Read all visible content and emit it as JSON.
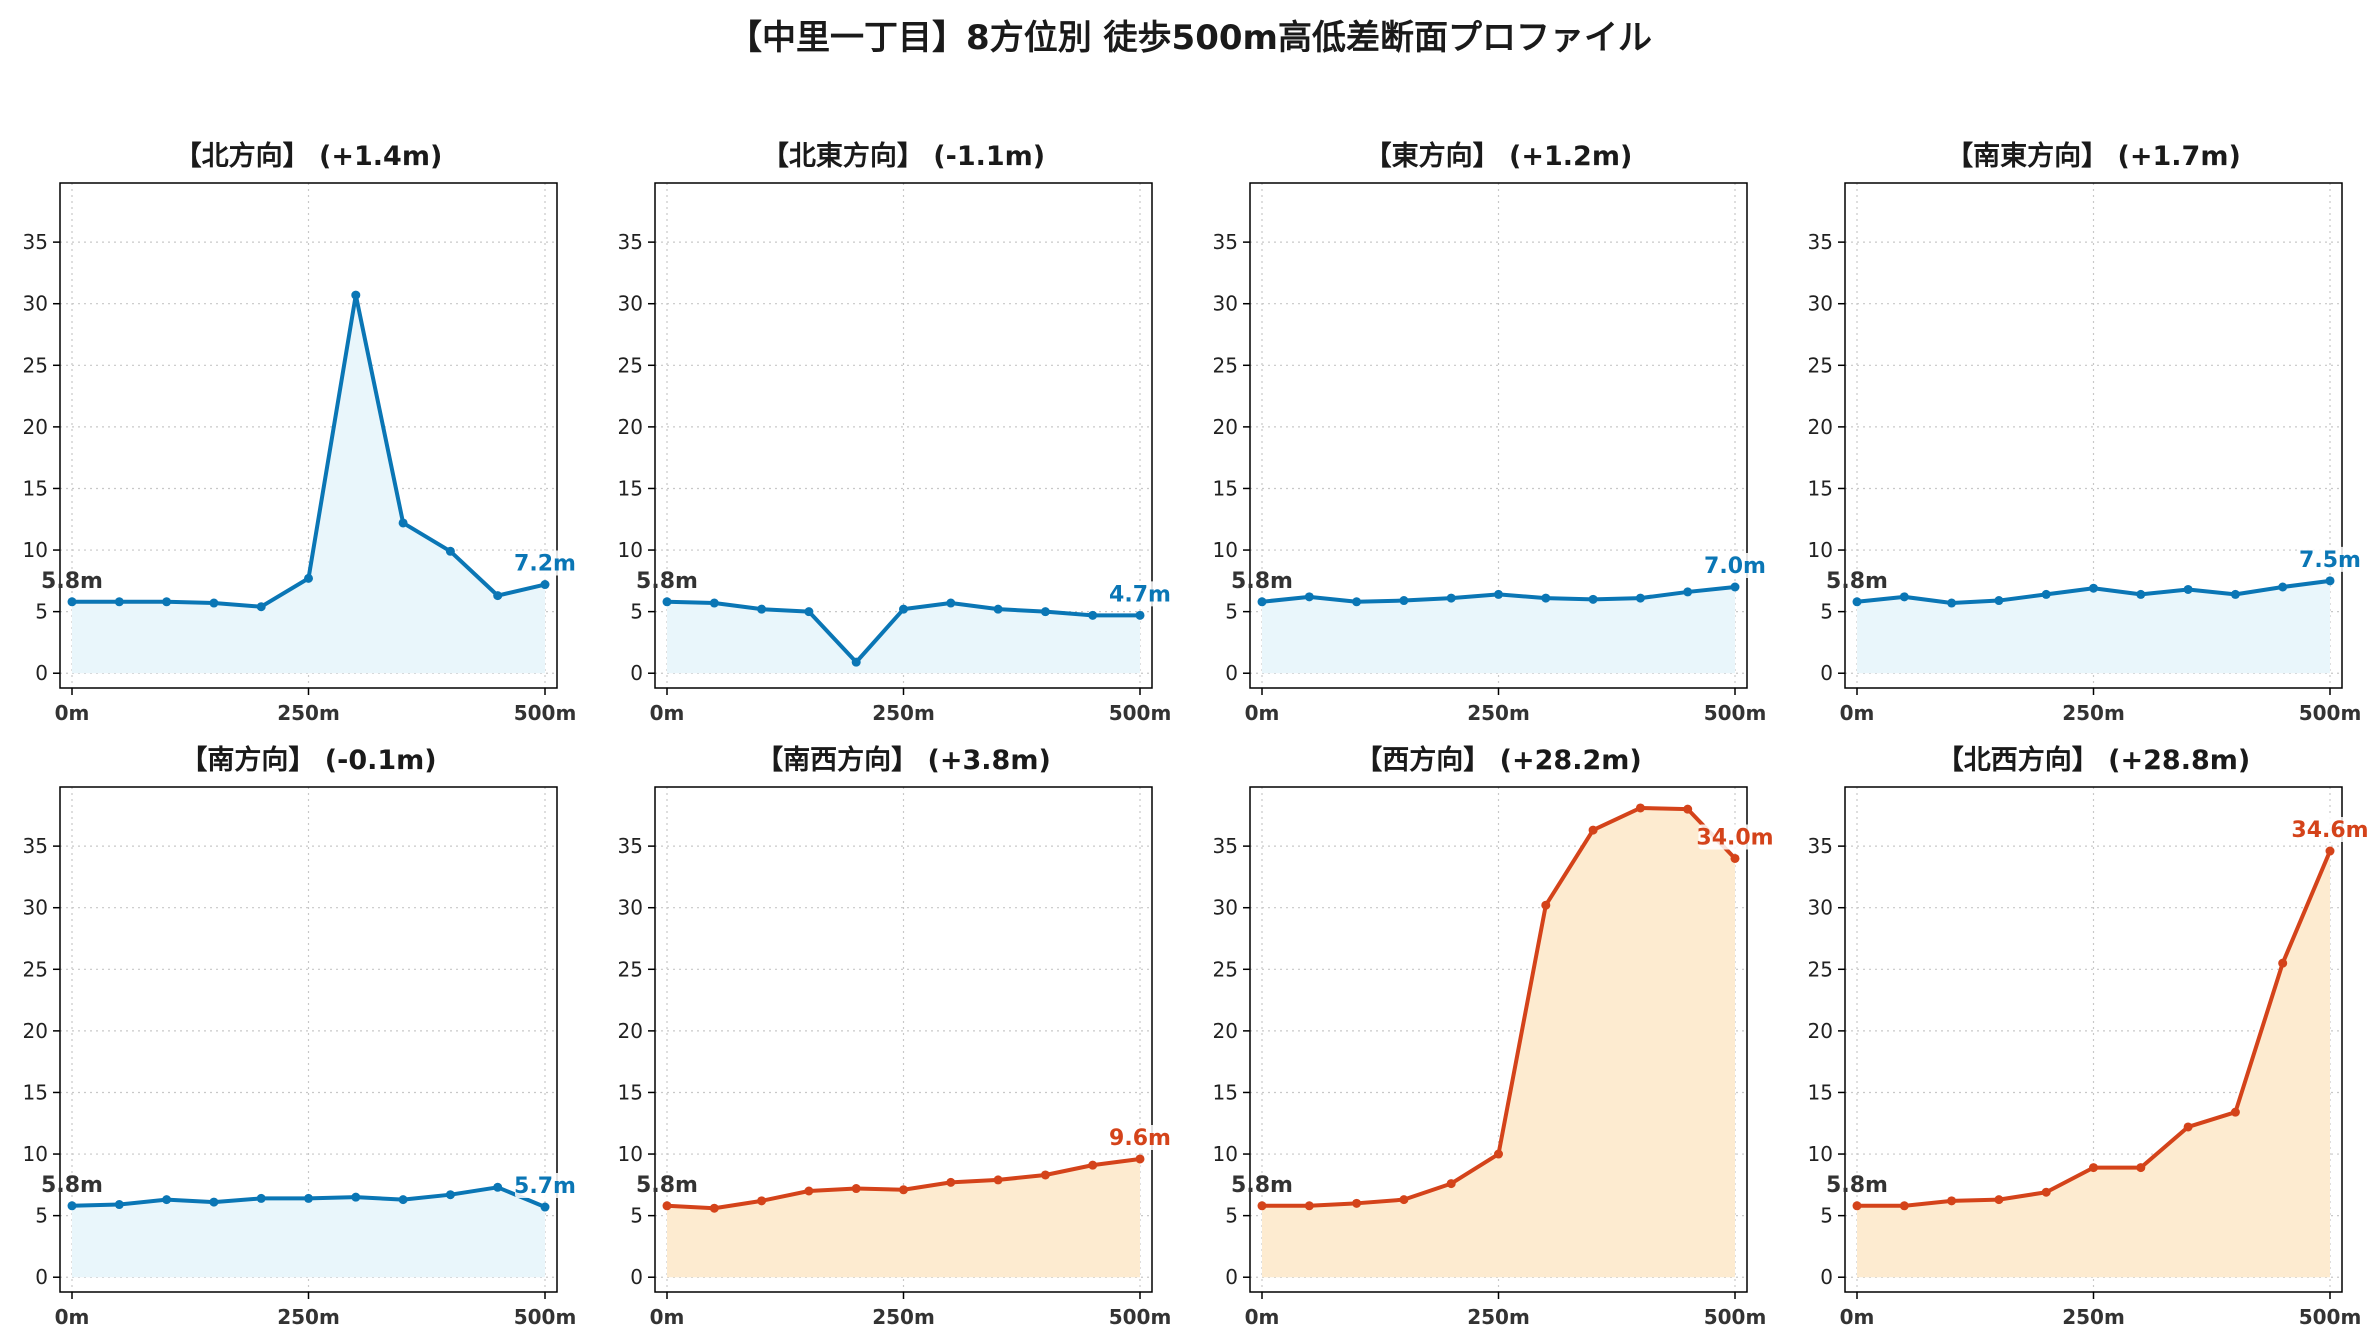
{
  "title": "【中里一丁目】8方位別 徒歩500m高低差断面プロファイル",
  "colors": {
    "up": "#d4431a",
    "down": "#0a76b5",
    "up_fill": "#fdebd0",
    "down_fill": "#e9f6fb",
    "start_label": "#333333"
  },
  "chart_data": [
    {
      "type": "line",
      "title": "【北方向】 (+1.4m)",
      "trend": "down",
      "x": [
        0,
        50,
        100,
        150,
        200,
        250,
        300,
        350,
        400,
        450,
        500
      ],
      "y": [
        5.8,
        5.8,
        5.8,
        5.7,
        5.4,
        7.7,
        30.7,
        12.2,
        9.9,
        6.3,
        7.2
      ],
      "start_label": "5.8m",
      "end_label": "7.2m",
      "xlim": [
        0,
        500
      ],
      "ylim": [
        0,
        40
      ],
      "yticks": [
        "0",
        "5",
        "10",
        "15",
        "20",
        "25",
        "30",
        "35"
      ],
      "xticks": [
        "0m",
        "250m",
        "500m"
      ],
      "grid": true
    },
    {
      "type": "line",
      "title": "【北東方向】 (-1.1m)",
      "trend": "down",
      "x": [
        0,
        50,
        100,
        150,
        200,
        250,
        300,
        350,
        400,
        450,
        500
      ],
      "y": [
        5.8,
        5.7,
        5.2,
        5.0,
        0.9,
        5.2,
        5.7,
        5.2,
        5.0,
        4.7,
        4.7
      ],
      "start_label": "5.8m",
      "end_label": "4.7m",
      "xlim": [
        0,
        500
      ],
      "ylim": [
        0,
        40
      ],
      "yticks": [
        "0",
        "5",
        "10",
        "15",
        "20",
        "25",
        "30",
        "35"
      ],
      "xticks": [
        "0m",
        "250m",
        "500m"
      ],
      "grid": true
    },
    {
      "type": "line",
      "title": "【東方向】 (+1.2m)",
      "trend": "down",
      "x": [
        0,
        50,
        100,
        150,
        200,
        250,
        300,
        350,
        400,
        450,
        500
      ],
      "y": [
        5.8,
        6.2,
        5.8,
        5.9,
        6.1,
        6.4,
        6.1,
        6.0,
        6.1,
        6.6,
        7.0
      ],
      "start_label": "5.8m",
      "end_label": "7.0m",
      "xlim": [
        0,
        500
      ],
      "ylim": [
        0,
        40
      ],
      "yticks": [
        "0",
        "5",
        "10",
        "15",
        "20",
        "25",
        "30",
        "35"
      ],
      "xticks": [
        "0m",
        "250m",
        "500m"
      ],
      "grid": true
    },
    {
      "type": "line",
      "title": "【南東方向】 (+1.7m)",
      "trend": "down",
      "x": [
        0,
        50,
        100,
        150,
        200,
        250,
        300,
        350,
        400,
        450,
        500
      ],
      "y": [
        5.8,
        6.2,
        5.7,
        5.9,
        6.4,
        6.9,
        6.4,
        6.8,
        6.4,
        7.0,
        7.5
      ],
      "start_label": "5.8m",
      "end_label": "7.5m",
      "xlim": [
        0,
        500
      ],
      "ylim": [
        0,
        40
      ],
      "yticks": [
        "0",
        "5",
        "10",
        "15",
        "20",
        "25",
        "30",
        "35"
      ],
      "xticks": [
        "0m",
        "250m",
        "500m"
      ],
      "grid": true
    },
    {
      "type": "line",
      "title": "【南方向】 (-0.1m)",
      "trend": "down",
      "x": [
        0,
        50,
        100,
        150,
        200,
        250,
        300,
        350,
        400,
        450,
        500
      ],
      "y": [
        5.8,
        5.9,
        6.3,
        6.1,
        6.4,
        6.4,
        6.5,
        6.3,
        6.7,
        7.3,
        5.7
      ],
      "start_label": "5.8m",
      "end_label": "5.7m",
      "xlim": [
        0,
        500
      ],
      "ylim": [
        0,
        40
      ],
      "yticks": [
        "0",
        "5",
        "10",
        "15",
        "20",
        "25",
        "30",
        "35"
      ],
      "xticks": [
        "0m",
        "250m",
        "500m"
      ],
      "grid": true
    },
    {
      "type": "line",
      "title": "【南西方向】 (+3.8m)",
      "trend": "up",
      "x": [
        0,
        50,
        100,
        150,
        200,
        250,
        300,
        350,
        400,
        450,
        500
      ],
      "y": [
        5.8,
        5.6,
        6.2,
        7.0,
        7.2,
        7.1,
        7.7,
        7.9,
        8.3,
        9.1,
        9.6
      ],
      "start_label": "5.8m",
      "end_label": "9.6m",
      "xlim": [
        0,
        500
      ],
      "ylim": [
        0,
        40
      ],
      "yticks": [
        "0",
        "5",
        "10",
        "15",
        "20",
        "25",
        "30",
        "35"
      ],
      "xticks": [
        "0m",
        "250m",
        "500m"
      ],
      "grid": true
    },
    {
      "type": "line",
      "title": "【西方向】 (+28.2m)",
      "trend": "up",
      "x": [
        0,
        50,
        100,
        150,
        200,
        250,
        300,
        350,
        400,
        450,
        500
      ],
      "y": [
        5.8,
        5.8,
        6.0,
        6.3,
        7.6,
        10.0,
        30.2,
        36.3,
        38.1,
        38.0,
        34.0
      ],
      "start_label": "5.8m",
      "end_label": "34.0m",
      "xlim": [
        0,
        500
      ],
      "ylim": [
        0,
        40
      ],
      "yticks": [
        "0",
        "5",
        "10",
        "15",
        "20",
        "25",
        "30",
        "35"
      ],
      "xticks": [
        "0m",
        "250m",
        "500m"
      ],
      "grid": true
    },
    {
      "type": "line",
      "title": "【北西方向】 (+28.8m)",
      "trend": "up",
      "x": [
        0,
        50,
        100,
        150,
        200,
        250,
        300,
        350,
        400,
        450,
        500
      ],
      "y": [
        5.8,
        5.8,
        6.2,
        6.3,
        6.9,
        8.9,
        8.9,
        12.2,
        13.4,
        25.5,
        34.6
      ],
      "start_label": "5.8m",
      "end_label": "34.6m",
      "xlim": [
        0,
        500
      ],
      "ylim": [
        0,
        40
      ],
      "yticks": [
        "0",
        "5",
        "10",
        "15",
        "20",
        "25",
        "30",
        "35"
      ],
      "xticks": [
        "0m",
        "250m",
        "500m"
      ],
      "grid": true
    }
  ]
}
